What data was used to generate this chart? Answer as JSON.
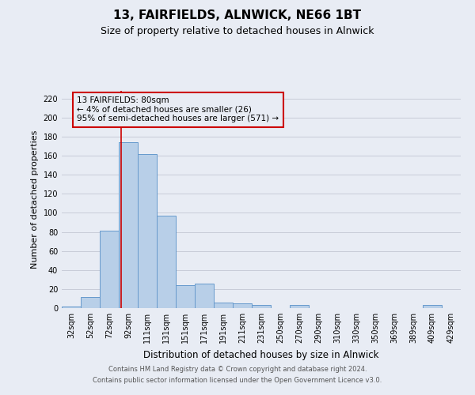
{
  "title": "13, FAIRFIELDS, ALNWICK, NE66 1BT",
  "subtitle": "Size of property relative to detached houses in Alnwick",
  "xlabel": "Distribution of detached houses by size in Alnwick",
  "ylabel": "Number of detached properties",
  "bar_labels": [
    "32sqm",
    "52sqm",
    "72sqm",
    "92sqm",
    "111sqm",
    "131sqm",
    "151sqm",
    "171sqm",
    "191sqm",
    "211sqm",
    "231sqm",
    "250sqm",
    "270sqm",
    "290sqm",
    "310sqm",
    "330sqm",
    "350sqm",
    "369sqm",
    "389sqm",
    "409sqm",
    "429sqm"
  ],
  "bar_heights": [
    2,
    12,
    81,
    174,
    162,
    97,
    24,
    26,
    6,
    5,
    3,
    0,
    3,
    0,
    0,
    0,
    0,
    0,
    0,
    3,
    0
  ],
  "bar_color": "#b8cfe8",
  "bar_edge_color": "#6699cc",
  "ylim": [
    0,
    228
  ],
  "yticks": [
    0,
    20,
    40,
    60,
    80,
    100,
    120,
    140,
    160,
    180,
    200,
    220
  ],
  "vline_x": 2.62,
  "vline_color": "#cc0000",
  "annotation_line1": "13 FAIRFIELDS: 80sqm",
  "annotation_line2": "← 4% of detached houses are smaller (26)",
  "annotation_line3": "95% of semi-detached houses are larger (571) →",
  "annotation_box_color": "#cc0000",
  "bg_color": "#e8ecf4",
  "grid_color": "#c8ccd8",
  "footer1": "Contains HM Land Registry data © Crown copyright and database right 2024.",
  "footer2": "Contains public sector information licensed under the Open Government Licence v3.0.",
  "title_fontsize": 11,
  "subtitle_fontsize": 9,
  "ylabel_fontsize": 8,
  "xlabel_fontsize": 8.5,
  "tick_fontsize": 7,
  "annotation_fontsize": 7.5,
  "footer_fontsize": 6
}
